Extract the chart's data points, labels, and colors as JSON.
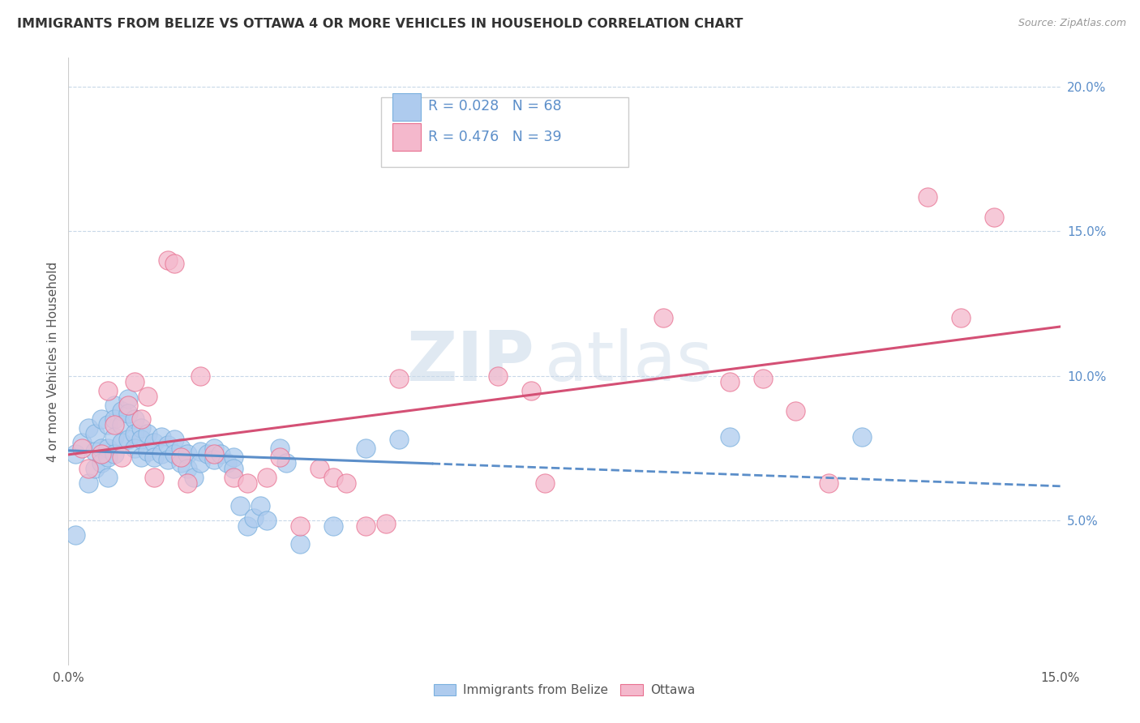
{
  "title": "IMMIGRANTS FROM BELIZE VS OTTAWA 4 OR MORE VEHICLES IN HOUSEHOLD CORRELATION CHART",
  "source": "Source: ZipAtlas.com",
  "ylabel": "4 or more Vehicles in Household",
  "xlim": [
    0.0,
    0.15
  ],
  "ylim": [
    0.0,
    0.21
  ],
  "xticks": [
    0.0,
    0.05,
    0.1,
    0.15
  ],
  "xtick_labels": [
    "0.0%",
    "",
    "",
    "15.0%"
  ],
  "yticks": [
    0.05,
    0.1,
    0.15,
    0.2
  ],
  "ytick_labels": [
    "5.0%",
    "10.0%",
    "15.0%",
    "20.0%"
  ],
  "belize_R": 0.028,
  "belize_N": 68,
  "ottawa_R": 0.476,
  "ottawa_N": 39,
  "belize_color": "#aecbee",
  "belize_edge_color": "#7ab0de",
  "belize_line_color": "#5b8ec9",
  "ottawa_color": "#f4b8cc",
  "ottawa_edge_color": "#e87090",
  "ottawa_line_color": "#d45075",
  "legend_label_belize": "Immigrants from Belize",
  "legend_label_ottawa": "Ottawa",
  "watermark_zip": "ZIP",
  "watermark_atlas": "atlas",
  "background_color": "#ffffff",
  "grid_color": "#c8d8e8",
  "title_color": "#333333",
  "source_color": "#999999",
  "ylabel_color": "#555555",
  "yticklabel_color": "#5b8ec9",
  "belize_scatter_x": [
    0.001,
    0.001,
    0.002,
    0.003,
    0.003,
    0.004,
    0.004,
    0.004,
    0.005,
    0.005,
    0.005,
    0.006,
    0.006,
    0.006,
    0.006,
    0.007,
    0.007,
    0.007,
    0.007,
    0.008,
    0.008,
    0.008,
    0.009,
    0.009,
    0.009,
    0.01,
    0.01,
    0.01,
    0.011,
    0.011,
    0.011,
    0.012,
    0.012,
    0.013,
    0.013,
    0.014,
    0.014,
    0.015,
    0.015,
    0.016,
    0.016,
    0.017,
    0.017,
    0.018,
    0.018,
    0.019,
    0.02,
    0.02,
    0.021,
    0.022,
    0.022,
    0.023,
    0.024,
    0.025,
    0.025,
    0.026,
    0.027,
    0.028,
    0.029,
    0.03,
    0.032,
    0.033,
    0.035,
    0.04,
    0.045,
    0.05,
    0.1,
    0.12
  ],
  "belize_scatter_y": [
    0.073,
    0.045,
    0.077,
    0.082,
    0.063,
    0.08,
    0.068,
    0.074,
    0.085,
    0.075,
    0.07,
    0.083,
    0.075,
    0.072,
    0.065,
    0.09,
    0.085,
    0.079,
    0.073,
    0.088,
    0.083,
    0.077,
    0.092,
    0.087,
    0.078,
    0.085,
    0.08,
    0.075,
    0.082,
    0.078,
    0.072,
    0.08,
    0.074,
    0.077,
    0.072,
    0.079,
    0.073,
    0.076,
    0.071,
    0.078,
    0.073,
    0.075,
    0.07,
    0.073,
    0.068,
    0.065,
    0.074,
    0.07,
    0.073,
    0.075,
    0.071,
    0.073,
    0.07,
    0.072,
    0.068,
    0.055,
    0.048,
    0.051,
    0.055,
    0.05,
    0.075,
    0.07,
    0.042,
    0.048,
    0.075,
    0.078,
    0.079,
    0.079
  ],
  "ottawa_scatter_x": [
    0.002,
    0.003,
    0.005,
    0.006,
    0.007,
    0.008,
    0.009,
    0.01,
    0.011,
    0.012,
    0.013,
    0.015,
    0.016,
    0.017,
    0.018,
    0.02,
    0.022,
    0.025,
    0.027,
    0.03,
    0.032,
    0.035,
    0.038,
    0.04,
    0.042,
    0.045,
    0.048,
    0.05,
    0.065,
    0.07,
    0.072,
    0.09,
    0.1,
    0.105,
    0.11,
    0.115,
    0.13,
    0.135,
    0.14
  ],
  "ottawa_scatter_y": [
    0.075,
    0.068,
    0.073,
    0.095,
    0.083,
    0.072,
    0.09,
    0.098,
    0.085,
    0.093,
    0.065,
    0.14,
    0.139,
    0.072,
    0.063,
    0.1,
    0.073,
    0.065,
    0.063,
    0.065,
    0.072,
    0.048,
    0.068,
    0.065,
    0.063,
    0.048,
    0.049,
    0.099,
    0.1,
    0.095,
    0.063,
    0.12,
    0.098,
    0.099,
    0.088,
    0.063,
    0.162,
    0.12,
    0.155
  ]
}
